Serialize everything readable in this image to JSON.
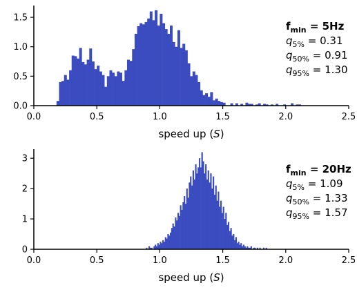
{
  "chart_data": [
    {
      "type": "histogram",
      "color": "#3b4cc0",
      "xlabel_prefix": "speed up (",
      "xlabel_var": "S",
      "xlabel_suffix": ")",
      "xlim": [
        0.0,
        2.5
      ],
      "ylim": [
        0.0,
        1.7
      ],
      "xticks": [
        "0.0",
        "0.5",
        "1.0",
        "1.5",
        "2.0",
        "2.5"
      ],
      "xtick_values": [
        0.0,
        0.5,
        1.0,
        1.5,
        2.0,
        2.5
      ],
      "yticks": [
        "0.0",
        "0.5",
        "1.0",
        "1.5"
      ],
      "ytick_values": [
        0.0,
        0.5,
        1.0,
        1.5
      ],
      "bin_start": 0.18,
      "bin_width": 0.02,
      "values": [
        0.08,
        0.4,
        0.42,
        0.52,
        0.44,
        0.6,
        0.85,
        0.84,
        0.8,
        0.98,
        0.74,
        0.7,
        0.78,
        0.97,
        0.75,
        0.62,
        0.68,
        0.58,
        0.52,
        0.32,
        0.5,
        0.6,
        0.56,
        0.5,
        0.58,
        0.56,
        0.42,
        0.6,
        0.78,
        0.76,
        0.96,
        1.22,
        1.35,
        1.4,
        1.38,
        1.42,
        1.48,
        1.6,
        1.45,
        1.62,
        1.36,
        1.56,
        1.4,
        1.3,
        1.22,
        1.36,
        1.08,
        1.0,
        1.28,
        0.98,
        1.05,
        0.94,
        0.72,
        0.5,
        0.58,
        0.52,
        0.4,
        0.26,
        0.18,
        0.21,
        0.15,
        0.23,
        0.09,
        0.12,
        0.08,
        0.06,
        0.05,
        0,
        0,
        0.04,
        0,
        0.04,
        0,
        0.03,
        0,
        0.05,
        0.03,
        0.03,
        0,
        0.02,
        0.04,
        0,
        0.03,
        0.02,
        0,
        0.02,
        0,
        0.03,
        0,
        0,
        0.02,
        0,
        0,
        0.04,
        0,
        0.02,
        0.02
      ],
      "annotation": {
        "title_main": "f",
        "title_sub": "min",
        "title_tail": " = 5Hz",
        "q5_label": "q",
        "q5_sub": "5%",
        "q5_value": " = 0.31",
        "q50_label": "q",
        "q50_sub": "50%",
        "q50_value": " = 0.91",
        "q95_label": "q",
        "q95_sub": "95%",
        "q95_value": " = 1.30"
      }
    },
    {
      "type": "histogram",
      "color": "#3b4cc0",
      "xlabel_prefix": "speed up (",
      "xlabel_var": "S",
      "xlabel_suffix": ")",
      "xlim": [
        0.0,
        2.5
      ],
      "ylim": [
        0.0,
        3.3
      ],
      "xticks": [
        "0.0",
        "0.5",
        "1.0",
        "1.5",
        "2.0",
        "2.5"
      ],
      "xtick_values": [
        0.0,
        0.5,
        1.0,
        1.5,
        2.0,
        2.5
      ],
      "yticks": [
        "0",
        "1",
        "2",
        "3"
      ],
      "ytick_values": [
        0,
        1,
        2,
        3
      ],
      "bin_start": 0.89,
      "bin_width": 0.01,
      "values": [
        0.05,
        0,
        0.1,
        0.05,
        0.05,
        0,
        0.1,
        0.15,
        0.1,
        0.2,
        0.15,
        0.25,
        0.2,
        0.3,
        0.25,
        0.4,
        0.35,
        0.5,
        0.45,
        0.55,
        0.7,
        0.85,
        0.75,
        1.05,
        0.95,
        1.2,
        1.1,
        1.45,
        1.3,
        1.55,
        1.75,
        1.5,
        2.0,
        1.7,
        2.2,
        2.4,
        2.1,
        2.6,
        2.3,
        2.8,
        2.5,
        2.7,
        3.0,
        2.7,
        3.2,
        2.9,
        2.5,
        2.8,
        2.3,
        2.6,
        2.2,
        2.5,
        2.0,
        2.4,
        1.8,
        2.1,
        1.6,
        1.9,
        1.4,
        1.6,
        1.2,
        1.4,
        1.0,
        1.2,
        0.8,
        0.9,
        0.6,
        0.7,
        0.45,
        0.5,
        0.3,
        0.4,
        0.2,
        0.25,
        0.15,
        0.2,
        0.1,
        0.15,
        0.1,
        0.05,
        0.1,
        0.05,
        0.05,
        0.1,
        0,
        0.05,
        0.05,
        0,
        0.05,
        0,
        0.05,
        0,
        0,
        0.05,
        0,
        0.05
      ],
      "annotation": {
        "title_main": "f",
        "title_sub": "min",
        "title_tail": " = 20Hz",
        "q5_label": "q",
        "q5_sub": "5%",
        "q5_value": " = 1.09",
        "q50_label": "q",
        "q50_sub": "50%",
        "q50_value": " = 1.33",
        "q95_label": "q",
        "q95_sub": "95%",
        "q95_value": " = 1.57"
      }
    }
  ]
}
